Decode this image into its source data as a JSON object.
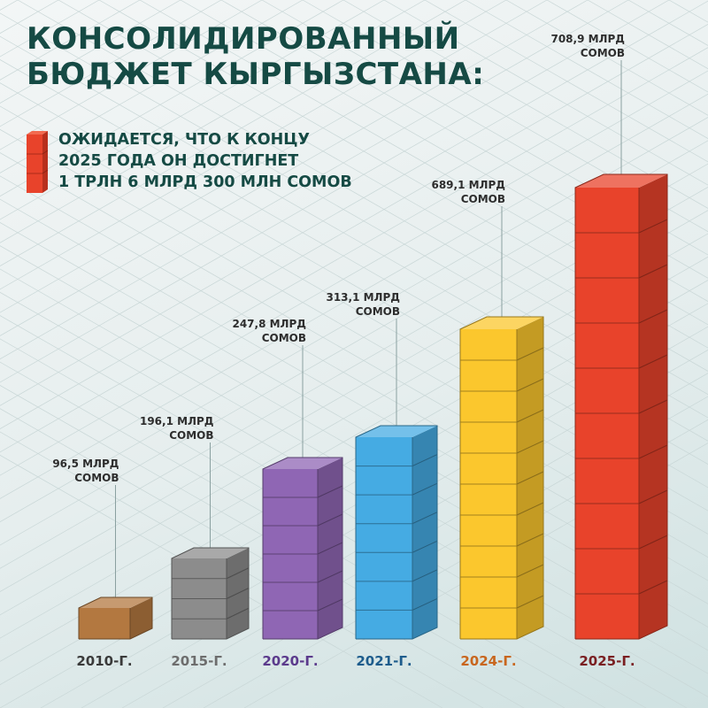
{
  "title": {
    "line1": "КОНСОЛИДИРОВАННЫЙ",
    "line2": "БЮДЖЕТ КЫРГЫЗСТАНА:"
  },
  "note": {
    "line1": "ОЖИДАЕТСЯ, ЧТО К КОНЦУ",
    "line2": "2025 ГОДА ОН ДОСТИГНЕТ",
    "line3": "1 ТРЛН 6 МЛРД 300 МЛН СОМОВ",
    "icon": "stacked-cubes-icon",
    "icon_color": "#e8432b"
  },
  "colors": {
    "title": "#154a44",
    "background": "#e8efef"
  },
  "chart_data": {
    "type": "bar",
    "style": "3d-stacked-cubes",
    "categories": [
      "2010-Г.",
      "2015-Г.",
      "2020-Г.",
      "2021-Г.",
      "2024-Г.",
      "2025-Г."
    ],
    "values": [
      96.5,
      196.1,
      247.8,
      313.1,
      689.1,
      708.9
    ],
    "units": "МЛРД СОМОВ",
    "data_labels": [
      [
        "96,5 МЛРД",
        "СОМОВ"
      ],
      [
        "196,1 МЛРД",
        "СОМОВ"
      ],
      [
        "247,8 МЛРД",
        "СОМОВ"
      ],
      [
        "313,1 МЛРД",
        "СОМОВ"
      ],
      [
        "689,1 МЛРД",
        "СОМОВ"
      ],
      [
        "708,9 МЛРД",
        "СОМОВ"
      ]
    ],
    "cube_counts": [
      1,
      4,
      6,
      7,
      10,
      10
    ],
    "bar_colors": [
      "#b37840",
      "#8c8c8c",
      "#8f66b4",
      "#45abe3",
      "#fbc72d",
      "#e8432b"
    ],
    "category_label_colors": [
      "#3a3a3a",
      "#6d6d6d",
      "#5b3a8c",
      "#1d5c8c",
      "#c8661e",
      "#7a1f22"
    ],
    "grid": true,
    "legend": "none"
  }
}
